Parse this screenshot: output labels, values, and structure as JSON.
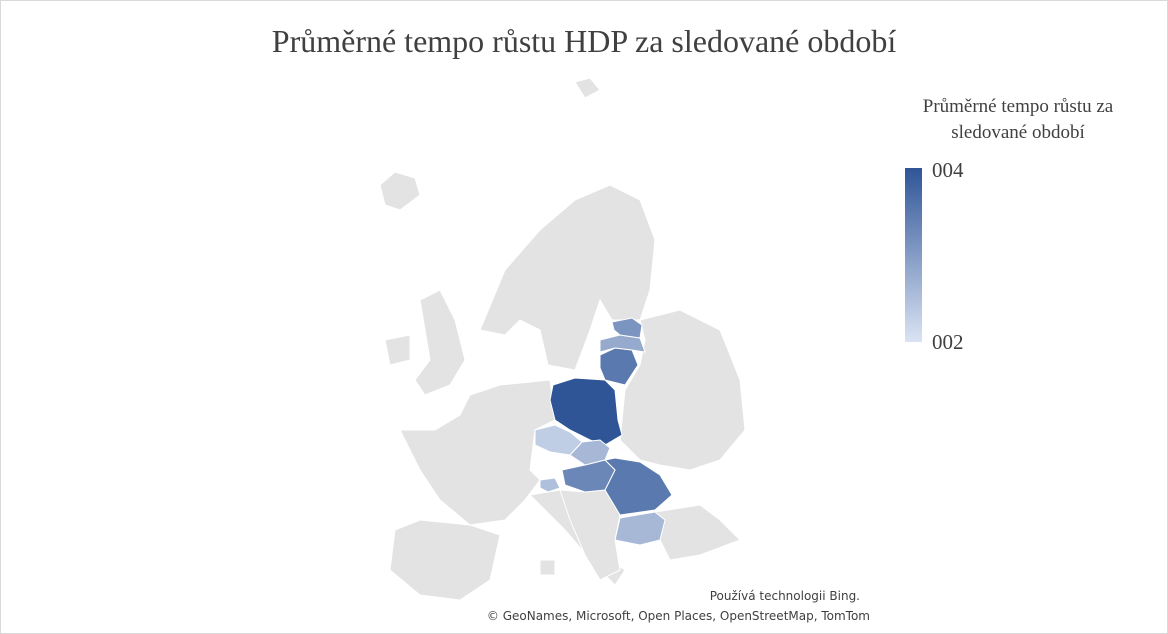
{
  "chart_data": {
    "type": "choropleth",
    "title": "Průměrné tempo růstu HDP za sledované období",
    "legend_title": "Průměrné tempo růstu za sledované období",
    "categories": [
      null,
      null,
      null,
      null,
      null,
      null,
      null,
      null,
      null,
      null
    ],
    "values": [
      4,
      3.5,
      3.3,
      3.5,
      2.8,
      3.1,
      2.6,
      2.3,
      2.5,
      2.6
    ],
    "colorscale": [
      "#dae3f3",
      "#2f5597"
    ],
    "clim": [
      2,
      4
    ],
    "cticks": [
      {
        "value": 4,
        "label": "004"
      },
      {
        "value": 2,
        "label": "002"
      }
    ],
    "attribution": [
      "Používá technologii Bing.",
      "© GeoNames, Microsoft, Open Places, OpenStreetMap, TomTom"
    ]
  }
}
